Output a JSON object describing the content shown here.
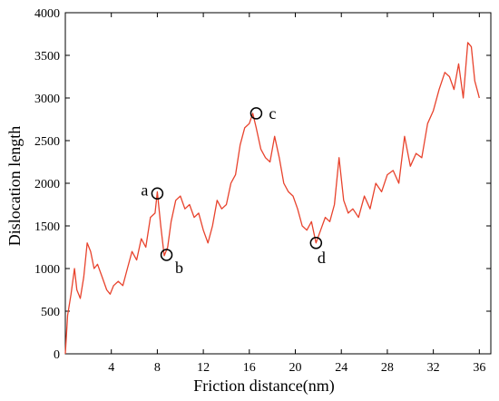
{
  "chart_data": {
    "type": "line",
    "xlabel": "Friction distance(nm)",
    "ylabel": "Dislocation length",
    "xlim": [
      0,
      37
    ],
    "ylim": [
      0,
      4000
    ],
    "x_ticks": [
      4,
      8,
      12,
      16,
      20,
      24,
      28,
      32,
      36
    ],
    "y_ticks": [
      0,
      500,
      1000,
      1500,
      2000,
      2500,
      3000,
      3500,
      4000
    ],
    "grid": false,
    "legend": "none",
    "line_color": "#e8432d",
    "series": [
      {
        "x": [
          0,
          0.2,
          0.5,
          0.8,
          1.0,
          1.3,
          1.6,
          1.9,
          2.2,
          2.5,
          2.8,
          3.2,
          3.6,
          3.9,
          4.2,
          4.6,
          5.0,
          5.4,
          5.8,
          6.2,
          6.6,
          7.0,
          7.4,
          7.8,
          8.0,
          8.3,
          8.6,
          8.9,
          9.2,
          9.6,
          10.0,
          10.4,
          10.8,
          11.2,
          11.6,
          12.0,
          12.4,
          12.8,
          13.2,
          13.6,
          14.0,
          14.4,
          14.8,
          15.2,
          15.6,
          16.0,
          16.3,
          16.6,
          17.0,
          17.4,
          17.8,
          18.2,
          18.6,
          19.0,
          19.4,
          19.8,
          20.2,
          20.6,
          21.0,
          21.4,
          21.8,
          22.2,
          22.6,
          23.0,
          23.4,
          23.8,
          24.2,
          24.6,
          25.0,
          25.5,
          26.0,
          26.5,
          27.0,
          27.5,
          28.0,
          28.5,
          29.0,
          29.5,
          30.0,
          30.5,
          31.0,
          31.5,
          32.0,
          32.5,
          33.0,
          33.4,
          33.8,
          34.2,
          34.6,
          35.0,
          35.3,
          35.6,
          35.9,
          36.0
        ],
        "y": [
          0,
          450,
          700,
          1000,
          750,
          650,
          900,
          1300,
          1200,
          1000,
          1050,
          900,
          750,
          700,
          800,
          850,
          800,
          1000,
          1200,
          1100,
          1350,
          1250,
          1600,
          1650,
          1900,
          1500,
          1150,
          1250,
          1550,
          1800,
          1850,
          1700,
          1750,
          1600,
          1650,
          1450,
          1300,
          1500,
          1800,
          1700,
          1750,
          2000,
          2100,
          2450,
          2650,
          2700,
          2820,
          2650,
          2400,
          2300,
          2250,
          2550,
          2300,
          2000,
          1900,
          1850,
          1700,
          1500,
          1450,
          1550,
          1300,
          1450,
          1600,
          1550,
          1750,
          2300,
          1800,
          1650,
          1700,
          1600,
          1850,
          1700,
          2000,
          1900,
          2100,
          2150,
          2000,
          2550,
          2200,
          2350,
          2300,
          2700,
          2850,
          3100,
          3300,
          3250,
          3100,
          3400,
          3000,
          3650,
          3600,
          3200,
          3050,
          3000
        ]
      }
    ],
    "annotations": [
      {
        "label": "a",
        "x": 8.0,
        "y": 1880
      },
      {
        "label": "b",
        "x": 8.8,
        "y": 1160
      },
      {
        "label": "c",
        "x": 16.6,
        "y": 2820
      },
      {
        "label": "d",
        "x": 21.8,
        "y": 1300
      }
    ]
  }
}
